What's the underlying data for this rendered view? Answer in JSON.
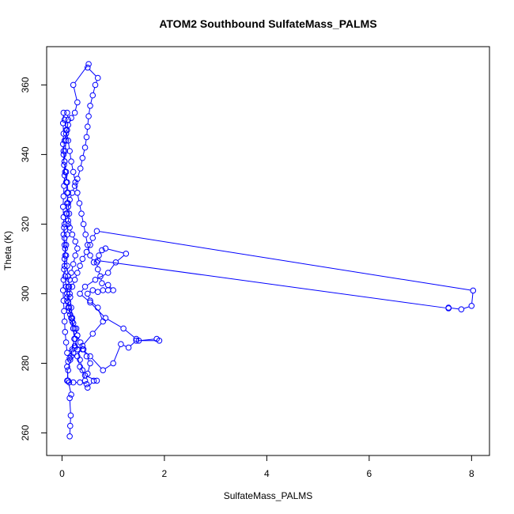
{
  "chart_data": {
    "type": "scatter",
    "title": "ATOM2 Southbound SulfateMass_PALMS",
    "xlabel": "SulfateMass_PALMS",
    "ylabel": "Theta (K)",
    "xlim": [
      -0.3,
      8.35
    ],
    "ylim": [
      253.5,
      371
    ],
    "xticks": [
      0,
      2,
      4,
      6,
      8
    ],
    "yticks": [
      260,
      280,
      300,
      320,
      340,
      360
    ],
    "grid": false,
    "legend": "none",
    "point_style": "open-circle",
    "connected": true,
    "color": "#0000ff",
    "series": [
      {
        "points": [
          [
            0.15,
            259.0
          ],
          [
            0.16,
            262.0
          ],
          [
            0.17,
            265.0
          ],
          [
            0.15,
            270.0
          ],
          [
            0.18,
            271.0
          ],
          [
            0.12,
            275.0
          ],
          [
            0.1,
            279.0
          ],
          [
            0.12,
            280.5
          ],
          [
            0.15,
            281.5
          ],
          [
            0.18,
            282.0
          ],
          [
            0.22,
            283.0
          ],
          [
            0.25,
            284.5
          ],
          [
            0.3,
            288.0
          ],
          [
            0.28,
            290.0
          ],
          [
            0.22,
            291.5
          ],
          [
            0.18,
            293.0
          ],
          [
            0.14,
            295.0
          ],
          [
            0.12,
            297.5
          ],
          [
            0.1,
            300.0
          ],
          [
            0.12,
            302.0
          ],
          [
            0.15,
            304.0
          ],
          [
            0.18,
            306.0
          ],
          [
            0.22,
            308.5
          ],
          [
            0.26,
            311.0
          ],
          [
            0.3,
            313.0
          ],
          [
            0.26,
            315.0
          ],
          [
            0.2,
            317.0
          ],
          [
            0.15,
            319.0
          ],
          [
            0.12,
            321.0
          ],
          [
            0.1,
            323.0
          ],
          [
            0.12,
            325.0
          ],
          [
            0.15,
            327.0
          ],
          [
            0.2,
            329.0
          ],
          [
            0.25,
            331.0
          ],
          [
            0.3,
            333.0
          ],
          [
            0.36,
            336.0
          ],
          [
            0.4,
            339.0
          ],
          [
            0.45,
            342.0
          ],
          [
            0.48,
            345.0
          ],
          [
            0.5,
            348.0
          ],
          [
            0.52,
            351.0
          ],
          [
            0.55,
            354.0
          ],
          [
            0.6,
            357.0
          ],
          [
            0.65,
            360.0
          ],
          [
            0.7,
            362.0
          ],
          [
            0.5,
            365.0
          ],
          [
            0.52,
            366.0
          ],
          [
            0.22,
            360.0
          ],
          [
            0.3,
            355.0
          ],
          [
            0.25,
            352.0
          ],
          [
            0.18,
            350.5
          ],
          [
            0.12,
            348.5
          ],
          [
            0.08,
            346.0
          ],
          [
            0.05,
            344.0
          ],
          [
            0.03,
            341.0
          ],
          [
            0.05,
            338.0
          ],
          [
            0.08,
            335.0
          ],
          [
            0.1,
            332.0
          ],
          [
            0.12,
            329.0
          ],
          [
            0.1,
            326.0
          ],
          [
            0.08,
            323.0
          ],
          [
            0.05,
            320.0
          ],
          [
            0.03,
            317.0
          ],
          [
            0.05,
            314.0
          ],
          [
            0.08,
            311.0
          ],
          [
            0.1,
            308.0
          ],
          [
            0.12,
            305.0
          ],
          [
            0.14,
            302.0
          ],
          [
            0.16,
            299.0
          ],
          [
            0.18,
            296.0
          ],
          [
            0.2,
            293.0
          ],
          [
            0.22,
            290.0
          ],
          [
            0.24,
            287.0
          ],
          [
            0.2,
            284.0
          ],
          [
            0.16,
            281.0
          ],
          [
            0.12,
            278.0
          ],
          [
            0.1,
            275.0
          ],
          [
            0.14,
            274.5
          ],
          [
            0.22,
            274.5
          ],
          [
            0.35,
            274.5
          ],
          [
            0.48,
            274.0
          ],
          [
            0.5,
            273.0
          ],
          [
            0.62,
            275.0
          ],
          [
            0.68,
            275.0
          ],
          [
            0.45,
            276.5
          ],
          [
            0.35,
            279.0
          ],
          [
            0.3,
            282.0
          ],
          [
            0.4,
            285.0
          ],
          [
            0.6,
            288.5
          ],
          [
            0.8,
            292.0
          ],
          [
            0.7,
            296.0
          ],
          [
            0.55,
            298.0
          ],
          [
            0.5,
            300.0
          ],
          [
            0.6,
            301.0
          ],
          [
            0.7,
            300.5
          ],
          [
            0.8,
            301.0
          ],
          [
            0.9,
            301.0
          ],
          [
            1.0,
            301.0
          ],
          [
            0.9,
            302.5
          ],
          [
            0.78,
            303.0
          ],
          [
            0.75,
            305.0
          ],
          [
            0.7,
            307.0
          ],
          [
            0.68,
            309.0
          ],
          [
            0.72,
            311.0
          ],
          [
            0.78,
            312.5
          ],
          [
            0.85,
            313.0
          ],
          [
            1.25,
            311.5
          ],
          [
            1.05,
            309.0
          ],
          [
            0.9,
            306.0
          ],
          [
            0.65,
            304.0
          ],
          [
            0.45,
            302.0
          ],
          [
            0.35,
            300.0
          ],
          [
            0.55,
            297.5
          ],
          [
            0.85,
            293.0
          ],
          [
            1.2,
            290.0
          ],
          [
            1.45,
            287.0
          ],
          [
            1.5,
            286.5
          ],
          [
            1.85,
            287.0
          ],
          [
            1.9,
            286.5
          ],
          [
            1.45,
            286.5
          ],
          [
            1.3,
            284.5
          ],
          [
            1.15,
            285.5
          ],
          [
            1.0,
            280.0
          ],
          [
            0.8,
            278.0
          ],
          [
            0.55,
            282.0
          ],
          [
            0.4,
            284.0
          ],
          [
            0.25,
            285.0
          ],
          [
            0.1,
            283.0
          ],
          [
            0.08,
            286.0
          ],
          [
            0.06,
            289.0
          ],
          [
            0.05,
            292.0
          ],
          [
            0.04,
            295.0
          ],
          [
            0.03,
            298.0
          ],
          [
            0.02,
            301.0
          ],
          [
            0.03,
            304.0
          ],
          [
            0.04,
            307.0
          ],
          [
            0.05,
            310.0
          ],
          [
            0.06,
            313.0
          ],
          [
            0.05,
            316.0
          ],
          [
            0.04,
            319.0
          ],
          [
            0.03,
            322.0
          ],
          [
            0.02,
            325.0
          ],
          [
            0.03,
            328.0
          ],
          [
            0.04,
            331.0
          ],
          [
            0.05,
            334.0
          ],
          [
            0.04,
            337.0
          ],
          [
            0.03,
            340.0
          ],
          [
            0.02,
            343.0
          ],
          [
            0.03,
            346.0
          ],
          [
            0.02,
            349.0
          ],
          [
            0.03,
            352.0
          ],
          [
            0.05,
            350.0
          ],
          [
            0.08,
            347.0
          ],
          [
            0.12,
            344.0
          ],
          [
            0.15,
            341.0
          ],
          [
            0.18,
            338.0
          ],
          [
            0.22,
            335.0
          ],
          [
            0.26,
            332.0
          ],
          [
            0.3,
            329.0
          ],
          [
            0.34,
            326.0
          ],
          [
            0.38,
            323.0
          ],
          [
            0.42,
            320.0
          ],
          [
            0.46,
            317.0
          ],
          [
            0.5,
            314.0
          ],
          [
            0.55,
            311.0
          ],
          [
            0.62,
            309.0
          ],
          [
            0.7,
            309.5
          ],
          [
            7.55,
            295.8
          ],
          [
            7.55,
            296.0
          ],
          [
            7.8,
            295.5
          ],
          [
            8.0,
            296.5
          ],
          [
            8.03,
            300.9
          ],
          [
            0.68,
            318.0
          ],
          [
            0.6,
            316.0
          ],
          [
            0.55,
            314.0
          ],
          [
            0.48,
            312.0
          ],
          [
            0.4,
            310.0
          ],
          [
            0.35,
            308.0
          ],
          [
            0.3,
            306.0
          ],
          [
            0.25,
            304.0
          ],
          [
            0.2,
            302.0
          ],
          [
            0.15,
            300.0
          ],
          [
            0.1,
            298.0
          ],
          [
            0.12,
            296.0
          ],
          [
            0.16,
            294.0
          ],
          [
            0.2,
            292.0
          ],
          [
            0.25,
            290.0
          ],
          [
            0.3,
            288.0
          ],
          [
            0.36,
            286.0
          ],
          [
            0.42,
            284.0
          ],
          [
            0.48,
            282.0
          ],
          [
            0.55,
            280.0
          ],
          [
            0.5,
            277.0
          ],
          [
            0.45,
            275.0
          ],
          [
            0.4,
            278.0
          ],
          [
            0.35,
            281.0
          ],
          [
            0.3,
            284.0
          ],
          [
            0.26,
            287.0
          ],
          [
            0.22,
            290.0
          ],
          [
            0.18,
            293.0
          ],
          [
            0.14,
            296.0
          ],
          [
            0.1,
            299.0
          ],
          [
            0.08,
            302.0
          ],
          [
            0.06,
            305.0
          ],
          [
            0.05,
            308.0
          ],
          [
            0.06,
            311.0
          ],
          [
            0.08,
            314.0
          ],
          [
            0.1,
            317.0
          ],
          [
            0.12,
            320.0
          ],
          [
            0.14,
            323.0
          ],
          [
            0.12,
            326.0
          ],
          [
            0.1,
            329.0
          ],
          [
            0.08,
            332.0
          ],
          [
            0.06,
            335.0
          ],
          [
            0.05,
            338.0
          ],
          [
            0.06,
            341.0
          ],
          [
            0.08,
            344.0
          ],
          [
            0.1,
            347.0
          ],
          [
            0.12,
            350.0
          ],
          [
            0.1,
            352.0
          ]
        ]
      }
    ]
  }
}
